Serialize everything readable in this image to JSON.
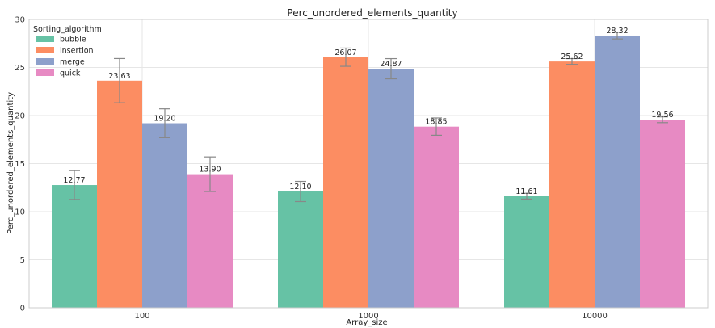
{
  "chart_data": {
    "type": "bar",
    "title": "Perc_unordered_elements_quantity",
    "xlabel": "Array_size",
    "ylabel": "Perc_unordered_elements_quantity",
    "categories": [
      "100",
      "1000",
      "10000"
    ],
    "ylim": [
      0,
      30
    ],
    "yticks": [
      "0",
      "5",
      "10",
      "15",
      "20",
      "25",
      "30"
    ],
    "grid": true,
    "legend": {
      "title": "Sorting_algorithm",
      "placement": "top-left"
    },
    "series": [
      {
        "name": "bubble",
        "color": "#66c2a5",
        "values": [
          12.77,
          12.1,
          11.61
        ],
        "labels": [
          "12.77",
          "12.10",
          "11.61"
        ],
        "err": [
          1.5,
          1.05,
          0.3
        ]
      },
      {
        "name": "insertion",
        "color": "#fc8d62",
        "values": [
          23.63,
          26.07,
          25.62
        ],
        "labels": [
          "23.63",
          "26.07",
          "25.62"
        ],
        "err": [
          2.3,
          0.95,
          0.3
        ]
      },
      {
        "name": "merge",
        "color": "#8da0cb",
        "values": [
          19.2,
          24.87,
          28.32
        ],
        "labels": [
          "19.20",
          "24.87",
          "28.32"
        ],
        "err": [
          1.5,
          1.05,
          0.35
        ]
      },
      {
        "name": "quick",
        "color": "#e78ac3",
        "values": [
          13.9,
          18.85,
          19.56
        ],
        "labels": [
          "13.90",
          "18.85",
          "19.56"
        ],
        "err": [
          1.8,
          0.9,
          0.3
        ]
      }
    ]
  }
}
